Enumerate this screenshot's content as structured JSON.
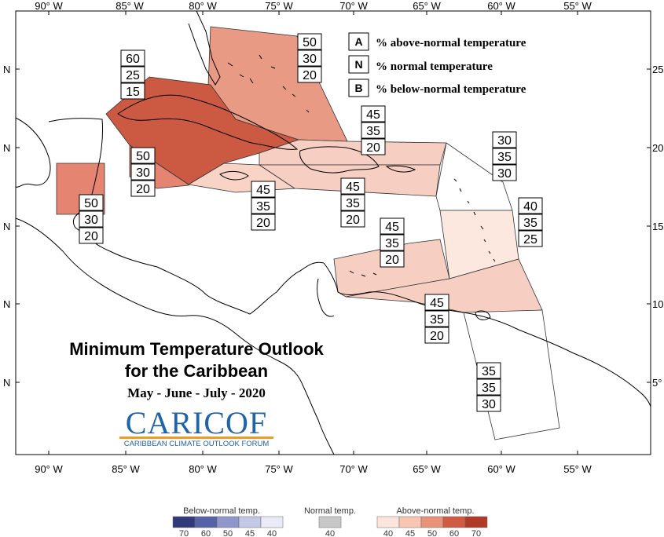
{
  "map": {
    "axis": {
      "lon_top": [
        "90° W",
        "85° W",
        "80° W",
        "75° W",
        "70° W",
        "65° W",
        "60° W",
        "55° W"
      ],
      "lon_bottom": [
        "90° W",
        "85° W",
        "80° W",
        "75° W",
        "70° W",
        "65° W",
        "60° W",
        "55° W"
      ],
      "lat_left": [
        "N",
        "N",
        "N",
        "N",
        "N"
      ],
      "lat_right": [
        "25",
        "20",
        "15",
        "10",
        "5°"
      ]
    },
    "key": [
      {
        "letter": "A",
        "text": "% above-normal temperature"
      },
      {
        "letter": "N",
        "text": "% normal temperature"
      },
      {
        "letter": "B",
        "text": "% below-normal temperature"
      }
    ],
    "regions": [
      {
        "name": "cuba",
        "values": [
          "60",
          "25",
          "15"
        ],
        "color": "#cc5a43"
      },
      {
        "name": "bahamas",
        "values": [
          "50",
          "30",
          "20"
        ],
        "color": "#e99a84"
      },
      {
        "name": "cayman-jamaica",
        "values": [
          "50",
          "30",
          "20"
        ],
        "color": "#e58470"
      },
      {
        "name": "belize",
        "values": [
          "50",
          "30",
          "20"
        ],
        "color": "#e58470"
      },
      {
        "name": "hispaniola-north",
        "values": [
          "45",
          "35",
          "20"
        ],
        "color": "#f7cfc2"
      },
      {
        "name": "jamaica-south",
        "values": [
          "45",
          "35",
          "20"
        ],
        "color": "#f8d3c6"
      },
      {
        "name": "puerto-rico",
        "values": [
          "45",
          "35",
          "20"
        ],
        "color": "#f7cfc2"
      },
      {
        "name": "leeward-islands",
        "values": [
          "30",
          "35",
          "30"
        ],
        "color": "#ffffff"
      },
      {
        "name": "windward-islands",
        "values": [
          "40",
          "35",
          "25"
        ],
        "color": "#fde8e0"
      },
      {
        "name": "abc-islands",
        "values": [
          "45",
          "35",
          "20"
        ],
        "color": "#f7cfc2"
      },
      {
        "name": "trinidad",
        "values": [
          "45",
          "35",
          "20"
        ],
        "color": "#f7cfc2"
      },
      {
        "name": "guianas",
        "values": [
          "35",
          "35",
          "30"
        ],
        "color": "#ffffff"
      }
    ],
    "title_line1": "Minimum Temperature Outlook",
    "title_line2": "for the Caribbean",
    "season": "May - June - July - 2020",
    "logo_text": "CARICOF",
    "logo_subtitle": "CARIBBEAN CLIMATE OUTLOOK FORUM"
  },
  "legend": {
    "below_label": "Below-normal temp.",
    "normal_label": "Normal temp.",
    "above_label": "Above-normal temp.",
    "below_colors": [
      "#2e3a7a",
      "#5563a6",
      "#8e97c9",
      "#c3c8e6",
      "#eaebf6"
    ],
    "below_ticks": [
      "70",
      "60",
      "50",
      "45",
      "40"
    ],
    "normal_color": "#c8c8c8",
    "normal_ticks": [
      "40"
    ],
    "above_colors": [
      "#fde5dc",
      "#f8c5b3",
      "#e8927a",
      "#d05a42",
      "#b03a26"
    ],
    "above_ticks": [
      "40",
      "45",
      "50",
      "60",
      "70"
    ]
  }
}
